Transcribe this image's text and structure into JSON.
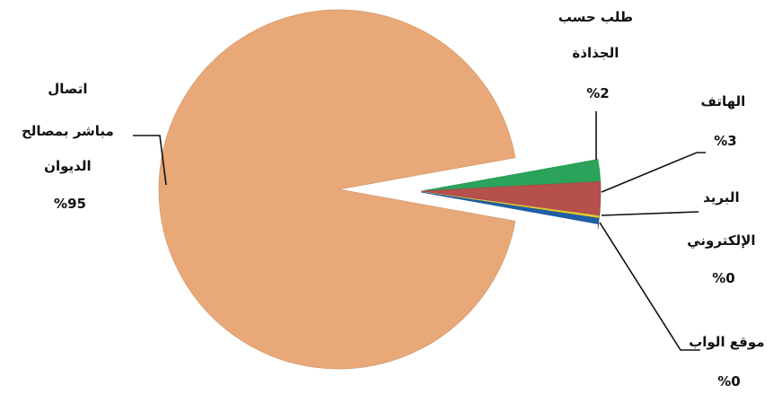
{
  "chart_data": {
    "type": "pie",
    "title": "",
    "exploded": true,
    "slices": [
      {
        "name": "اتصال مباشر بمصالح الديوان",
        "name_lines": [
          "اتصال",
          "مباشر بمصالح",
          "الديوان"
        ],
        "percent_label": "%95",
        "value": 95,
        "color": "#E8A878"
      },
      {
        "name": "طلب حسب الجذاذة",
        "name_lines": [
          "طلب حسب",
          "الجذاذة"
        ],
        "percent_label": "%2",
        "value": 2,
        "color": "#2BA35A"
      },
      {
        "name": "الهاتف",
        "name_lines": [
          "الهاتف"
        ],
        "percent_label": "%3",
        "value": 3,
        "color": "#B5504A"
      },
      {
        "name": "البريد الإلكتروني",
        "name_lines": [
          "البريد",
          "الإلكتروني"
        ],
        "percent_label": "%0",
        "value": 0.2,
        "color": "#E8D020"
      },
      {
        "name": "موقع الواب",
        "name_lines": [
          "موقع الواب"
        ],
        "percent_label": "%0",
        "value": 0.5,
        "color": "#1F5FA8"
      }
    ]
  }
}
